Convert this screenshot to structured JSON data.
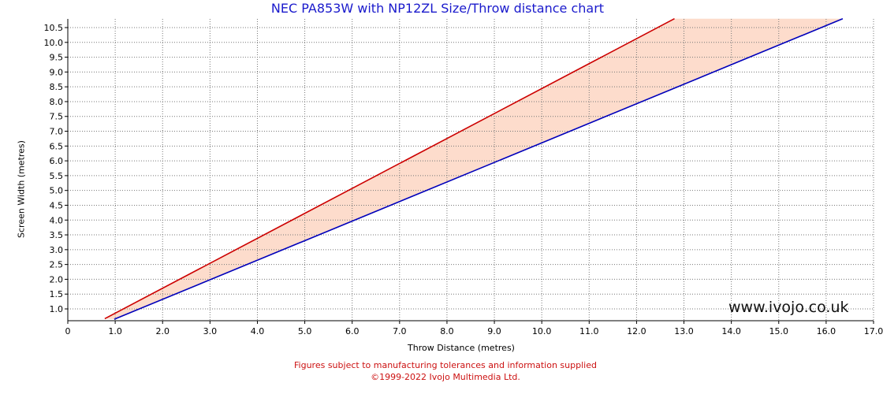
{
  "colors": {
    "title": "#1a1acc",
    "max_line": "#cc0000",
    "min_line": "#0000bb",
    "fill": "#fddccc",
    "notes": "#cc1111"
  },
  "watermark": "www.ivojo.co.uk",
  "footer": {
    "note": "Figures subject to manufacturing tolerances and information supplied",
    "copyright": "©1999-2022 Ivojo Multimedia Ltd."
  },
  "chart_data": {
    "type": "area",
    "title": "NEC PA853W with NP12ZL Size/Throw distance chart",
    "xlabel": "Throw Distance (metres)",
    "ylabel": "Screen Width (metres)",
    "xlim": [
      0,
      17
    ],
    "ylim": [
      0.6,
      10.75
    ],
    "x_ticks": [
      "0",
      "1.0",
      "2.0",
      "3.0",
      "4.0",
      "5.0",
      "6.0",
      "7.0",
      "8.0",
      "9.0",
      "10.0",
      "11.0",
      "12.0",
      "13.0",
      "14.0",
      "15.0",
      "16.0",
      "17.0"
    ],
    "y_ticks": [
      "1.0",
      "1.5",
      "2.0",
      "2.5",
      "3.0",
      "3.5",
      "4.0",
      "4.5",
      "5.0",
      "5.5",
      "6.0",
      "6.5",
      "7.0",
      "7.5",
      "8.0",
      "8.5",
      "9.0",
      "9.5",
      "10.0",
      "10.5"
    ],
    "grid": true,
    "series": [
      {
        "x": [
          0.78,
          12.8
        ],
        "y": [
          0.67,
          10.8
        ]
      },
      {
        "x": [
          0.98,
          16.35
        ],
        "y": [
          0.65,
          10.8
        ]
      }
    ]
  }
}
